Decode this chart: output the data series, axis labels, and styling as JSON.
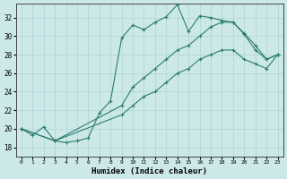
{
  "xlabel": "Humidex (Indice chaleur)",
  "xlim": [
    -0.5,
    23.5
  ],
  "ylim": [
    17.0,
    33.5
  ],
  "xticks": [
    0,
    1,
    2,
    3,
    4,
    5,
    6,
    7,
    8,
    9,
    10,
    11,
    12,
    13,
    14,
    15,
    16,
    17,
    18,
    19,
    20,
    21,
    22,
    23
  ],
  "yticks": [
    18,
    20,
    22,
    24,
    26,
    28,
    30,
    32
  ],
  "line_color": "#2e7d6e",
  "bg_color": "#cce8e8",
  "grid_color": "#afd4d4",
  "line1_x": [
    0,
    1,
    2,
    3,
    4,
    5,
    6,
    7,
    8,
    9,
    10,
    11,
    12,
    13,
    14,
    15,
    16,
    17,
    18,
    19,
    20,
    21,
    22,
    23
  ],
  "line1_y": [
    20.0,
    19.3,
    20.2,
    18.7,
    18.5,
    18.7,
    19.0,
    21.7,
    23.0,
    29.8,
    31.2,
    30.7,
    31.5,
    32.1,
    33.4,
    30.5,
    32.2,
    32.0,
    31.7,
    31.5,
    30.2,
    28.5,
    27.5,
    28.0
  ],
  "line2_x": [
    0,
    3,
    9,
    10,
    11,
    12,
    13,
    14,
    15,
    16,
    17,
    18,
    19,
    20,
    21,
    22,
    23
  ],
  "line2_y": [
    20.0,
    18.7,
    22.5,
    24.5,
    25.5,
    26.5,
    27.5,
    28.5,
    29.0,
    30.0,
    31.0,
    31.5,
    31.5,
    30.3,
    29.0,
    27.5,
    28.0
  ],
  "line3_x": [
    0,
    3,
    9,
    10,
    11,
    12,
    13,
    14,
    15,
    16,
    17,
    18,
    19,
    20,
    21,
    22,
    23
  ],
  "line3_y": [
    20.0,
    18.7,
    21.5,
    22.5,
    23.5,
    24.0,
    25.0,
    26.0,
    26.5,
    27.5,
    28.0,
    28.5,
    28.5,
    27.5,
    27.0,
    26.5,
    28.0
  ]
}
